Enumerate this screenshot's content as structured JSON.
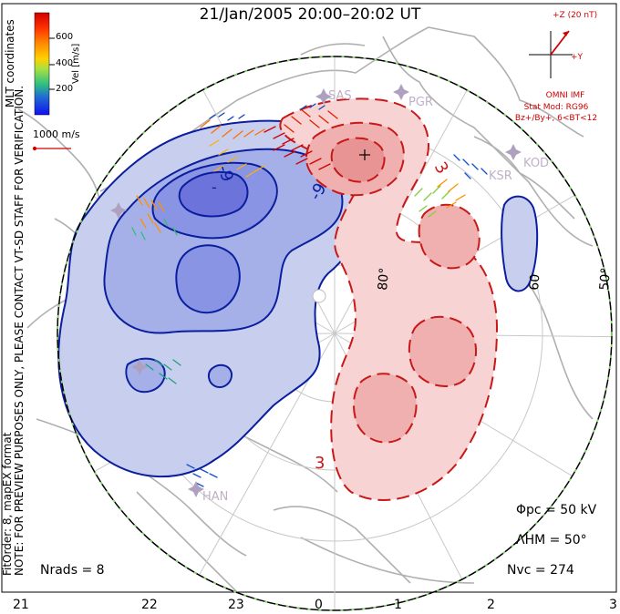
{
  "title": "21/Jan/2005 20:00–20:02 UT",
  "coord_label": "MLT coordinates",
  "preview_note": "NOTE: FOR PREVIEW PURPOSES ONLY, PLEASE CONTACT VT-SD STAFF FOR VERIFICATION.",
  "fit_order_note": "FitOrder: 8, mapEX format",
  "colorbar": {
    "label": "Vel [m/s]",
    "ticks": [
      "600",
      "400",
      "200"
    ],
    "colors": [
      "#d00000",
      "#ff4000",
      "#ff8000",
      "#ffc000",
      "#c8e000",
      "#60d040",
      "#20b0a0",
      "#2060d0",
      "#1010e0"
    ]
  },
  "reference_vector": "1000 m/s",
  "imf": {
    "scale": "+Z (20 nT)",
    "y_axis": "+Y",
    "source": "OMNI IMF",
    "model": "Stat Mod: RG96",
    "conditions": "Bz+/By+, 6<BT<12"
  },
  "stations": [
    "SAS",
    "PGR",
    "KOD",
    "KSR",
    "HAN"
  ],
  "latitude_labels": [
    "80°",
    "60",
    "50°"
  ],
  "contour_labels": {
    "negative": [
      "-9",
      "-9"
    ],
    "positive": [
      "3",
      "3"
    ],
    "minimum": "-"
  },
  "mlt_ticks": [
    "21",
    "22",
    "23",
    "0",
    "1",
    "2",
    "3"
  ],
  "stats": {
    "phi_pc": "Φpc = 50 kV",
    "lambda_hm": "ΛHM = 50°",
    "n_vc": "Nvc = 274",
    "n_rads": "Nrads = 8"
  },
  "colors": {
    "negative_fill": "#c8cfee",
    "negative_line": "#0a1e9e",
    "positive_fill": "#f7d3d3",
    "positive_line": "#c81818",
    "land": "#bdbdbd",
    "boundary_green": "#80e060"
  }
}
